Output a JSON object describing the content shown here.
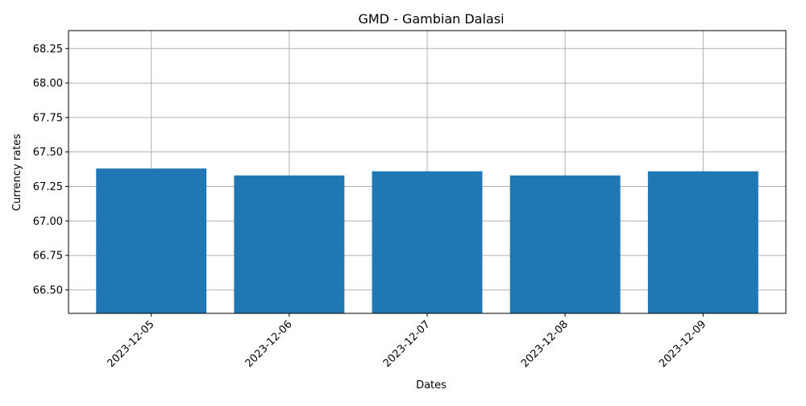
{
  "chart_data": {
    "type": "bar",
    "title": "GMD - Gambian Dalasi",
    "xlabel": "Dates",
    "ylabel": "Currency rates",
    "categories": [
      "2023-12-05",
      "2023-12-06",
      "2023-12-07",
      "2023-12-08",
      "2023-12-09"
    ],
    "values": [
      67.38,
      67.33,
      67.36,
      67.33,
      67.36
    ],
    "ylim": [
      66.33,
      68.38
    ],
    "yticks": [
      "66.50",
      "66.75",
      "67.00",
      "67.25",
      "67.50",
      "67.75",
      "68.00",
      "68.25"
    ],
    "grid": true,
    "bar_color": "#1f77b4",
    "grid_color": "#b0b0b0"
  }
}
